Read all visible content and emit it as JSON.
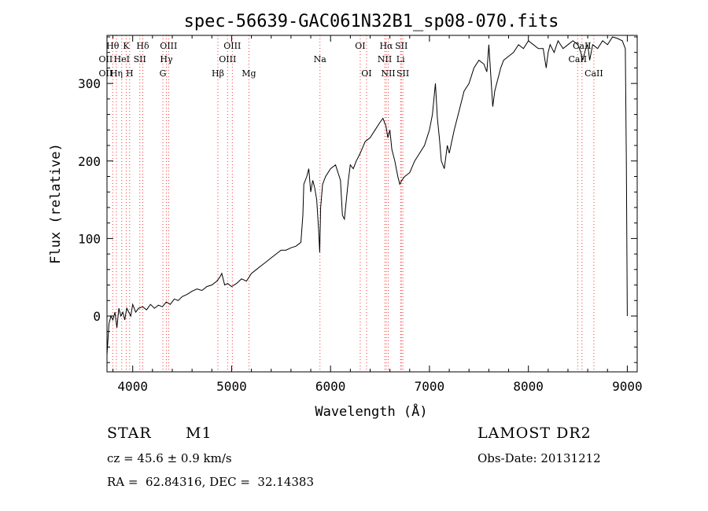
{
  "chart_data": {
    "type": "line",
    "title": "spec-56639-GAC061N32B1_sp08-070.fits",
    "xlabel": "Wavelength (Å)",
    "ylabel": "Flux (relative)",
    "xlim": [
      3740,
      9100
    ],
    "ylim": [
      -72,
      362
    ],
    "xticks": [
      4000,
      5000,
      6000,
      7000,
      8000,
      9000
    ],
    "yticks": [
      0,
      100,
      200,
      300
    ],
    "grid": false,
    "line_color": "#000000",
    "marker_color": "#ff3333",
    "spectrum": {
      "x": [
        3740,
        3760,
        3780,
        3800,
        3820,
        3840,
        3860,
        3880,
        3900,
        3920,
        3940,
        3960,
        3980,
        4000,
        4030,
        4060,
        4100,
        4140,
        4180,
        4220,
        4260,
        4300,
        4340,
        4380,
        4420,
        4460,
        4500,
        4550,
        4600,
        4650,
        4700,
        4750,
        4800,
        4850,
        4880,
        4900,
        4930,
        4960,
        5000,
        5050,
        5100,
        5150,
        5200,
        5250,
        5300,
        5350,
        5400,
        5450,
        5500,
        5550,
        5600,
        5650,
        5700,
        5720,
        5730,
        5760,
        5780,
        5800,
        5820,
        5840,
        5860,
        5880,
        5890,
        5900,
        5920,
        5950,
        6000,
        6050,
        6100,
        6120,
        6140,
        6160,
        6180,
        6200,
        6230,
        6260,
        6300,
        6350,
        6400,
        6450,
        6500,
        6530,
        6560,
        6580,
        6600,
        6620,
        6650,
        6680,
        6700,
        6720,
        6750,
        6800,
        6850,
        6900,
        6950,
        7000,
        7030,
        7060,
        7080,
        7100,
        7120,
        7150,
        7180,
        7200,
        7250,
        7300,
        7350,
        7400,
        7450,
        7500,
        7550,
        7580,
        7600,
        7620,
        7640,
        7660,
        7680,
        7700,
        7720,
        7750,
        7800,
        7850,
        7900,
        7950,
        8000,
        8050,
        8100,
        8150,
        8180,
        8200,
        8220,
        8240,
        8260,
        8300,
        8350,
        8400,
        8450,
        8500,
        8530,
        8550,
        8580,
        8600,
        8620,
        8650,
        8700,
        8750,
        8800,
        8850,
        8900,
        8950,
        8980,
        8990,
        9000
      ],
      "y": [
        -50,
        -10,
        0,
        -5,
        5,
        -15,
        10,
        0,
        5,
        -5,
        10,
        5,
        0,
        15,
        5,
        10,
        12,
        8,
        15,
        10,
        14,
        12,
        18,
        15,
        22,
        20,
        25,
        28,
        32,
        35,
        33,
        38,
        40,
        45,
        50,
        55,
        40,
        42,
        38,
        42,
        48,
        45,
        55,
        60,
        65,
        70,
        75,
        80,
        85,
        85,
        88,
        90,
        95,
        130,
        170,
        180,
        190,
        160,
        175,
        165,
        150,
        110,
        82,
        140,
        170,
        180,
        190,
        195,
        175,
        130,
        125,
        150,
        175,
        195,
        190,
        200,
        210,
        225,
        230,
        240,
        250,
        255,
        245,
        230,
        240,
        215,
        200,
        180,
        170,
        175,
        180,
        185,
        200,
        210,
        220,
        240,
        260,
        300,
        255,
        230,
        200,
        190,
        220,
        210,
        240,
        265,
        290,
        300,
        320,
        330,
        325,
        315,
        350,
        310,
        270,
        290,
        300,
        310,
        320,
        330,
        335,
        340,
        350,
        345,
        355,
        350,
        345,
        345,
        320,
        340,
        350,
        345,
        340,
        355,
        345,
        350,
        355,
        350,
        340,
        330,
        345,
        350,
        330,
        350,
        345,
        355,
        350,
        360,
        358,
        355,
        345,
        200,
        0
      ]
    },
    "lines": [
      {
        "label": "Hθ",
        "wavelength": 3798,
        "row": 1
      },
      {
        "label": "OII",
        "wavelength": 3727,
        "row": 2
      },
      {
        "label": "OII",
        "wavelength": 3727,
        "row": 3
      },
      {
        "label": "K",
        "wavelength": 3934,
        "row": 1
      },
      {
        "label": "HeI",
        "wavelength": 3889,
        "row": 2
      },
      {
        "label": "Hη",
        "wavelength": 3835,
        "row": 3
      },
      {
        "label": "SII",
        "wavelength": 4072,
        "row": 2
      },
      {
        "label": "H",
        "wavelength": 3969,
        "row": 3
      },
      {
        "label": "Hδ",
        "wavelength": 4102,
        "row": 1
      },
      {
        "label": "OIII",
        "wavelength": 4363,
        "row": 1
      },
      {
        "label": "Hγ",
        "wavelength": 4340,
        "row": 2
      },
      {
        "label": "G",
        "wavelength": 4305,
        "row": 3
      },
      {
        "label": "OIII",
        "wavelength": 5007,
        "row": 1
      },
      {
        "label": "OIII",
        "wavelength": 4959,
        "row": 2
      },
      {
        "label": "Hβ",
        "wavelength": 4861,
        "row": 3
      },
      {
        "label": "Mg",
        "wavelength": 5175,
        "row": 3
      },
      {
        "label": "Na",
        "wavelength": 5893,
        "row": 2
      },
      {
        "label": "OI",
        "wavelength": 6300,
        "row": 1
      },
      {
        "label": "OI",
        "wavelength": 6364,
        "row": 3
      },
      {
        "label": "Hα",
        "wavelength": 6563,
        "row": 1
      },
      {
        "label": "SII",
        "wavelength": 6716,
        "row": 1
      },
      {
        "label": "NII",
        "wavelength": 6548,
        "row": 2
      },
      {
        "label": "Li",
        "wavelength": 6708,
        "row": 2
      },
      {
        "label": "NII",
        "wavelength": 6583,
        "row": 3
      },
      {
        "label": "SII",
        "wavelength": 6731,
        "row": 3
      },
      {
        "label": "CaII",
        "wavelength": 8542,
        "row": 1
      },
      {
        "label": "CaII",
        "wavelength": 8498,
        "row": 2
      },
      {
        "label": "CaII",
        "wavelength": 8662,
        "row": 3
      }
    ]
  },
  "info": {
    "object_type": "STAR",
    "object_class": "M1",
    "survey": "LAMOST DR2",
    "redshift": "cz = 45.6 ± 0.9 km/s",
    "obs_date": "Obs-Date: 20131212",
    "coords": "RA =  62.84316, DEC =  32.14383"
  }
}
